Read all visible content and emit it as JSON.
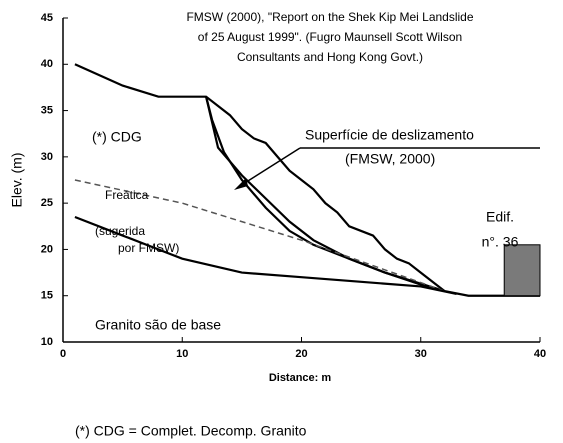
{
  "chart_data": {
    "type": "line",
    "title_lines": [
      "FMSW (2000), \"Report on the Shek Kip Mei Landslide",
      "of 25 August 1999\". (Fugro Maunsell Scott Wilson",
      "Consultants and Hong Kong Govt.)"
    ],
    "xlabel": "Distance: m",
    "ylabel": "Elev. (m)",
    "xlim": [
      0,
      40
    ],
    "ylim": [
      10,
      45
    ],
    "xticks": [
      0,
      10,
      20,
      30,
      40
    ],
    "yticks": [
      10,
      15,
      20,
      25,
      30,
      35,
      40,
      45
    ],
    "series": [
      {
        "color": "#000000",
        "dash": false,
        "x": [
          1,
          5,
          8,
          12,
          14,
          15,
          16,
          17,
          18,
          19,
          20,
          21,
          22,
          23,
          24,
          25,
          26,
          27,
          28,
          29,
          30,
          31,
          32,
          34,
          40
        ],
        "values": [
          40,
          37.7,
          36.5,
          36.5,
          34.5,
          33,
          32,
          31.5,
          30,
          28.5,
          27.5,
          26.5,
          25,
          24,
          22.5,
          22,
          21.5,
          20,
          19,
          18.5,
          17.5,
          16.5,
          15.5,
          15,
          15
        ]
      },
      {
        "color": "#000000",
        "dash": false,
        "x": [
          12,
          12.5,
          13.5,
          15,
          17,
          19,
          21,
          24,
          27,
          30,
          32
        ],
        "values": [
          36.5,
          34,
          30.5,
          27.5,
          24.5,
          22,
          20.5,
          19,
          17.5,
          16.2,
          15.5
        ]
      },
      {
        "color": "#000000",
        "dash": false,
        "x": [
          12,
          13,
          15,
          17,
          19,
          21,
          24,
          27,
          30,
          32
        ],
        "values": [
          36.5,
          31,
          28,
          25.5,
          23,
          21,
          19,
          17.5,
          16.3,
          15.5
        ]
      },
      {
        "color": "#555555",
        "dash": true,
        "x": [
          1,
          10,
          20,
          32
        ],
        "values": [
          27.5,
          25,
          21,
          15.5
        ]
      },
      {
        "color": "#000000",
        "dash": false,
        "x": [
          1,
          5,
          10,
          15,
          20,
          25,
          30,
          33
        ],
        "values": [
          23.5,
          21.5,
          19,
          17.5,
          17,
          16.5,
          16,
          15.2
        ]
      }
    ],
    "building": {
      "x": [
        37,
        40
      ],
      "y": [
        15,
        20.5
      ],
      "color": "#7a7a7a"
    },
    "annotations": [
      "(*) CDG",
      "Superfície de deslizamento",
      "(FMSW, 2000)",
      "Freática",
      "(sugerida",
      "por FMSW)",
      "Edif.",
      "n°. 36",
      "Granito são de base"
    ],
    "footnote": "(*) CDG = Complet. Decomp. Granito"
  }
}
